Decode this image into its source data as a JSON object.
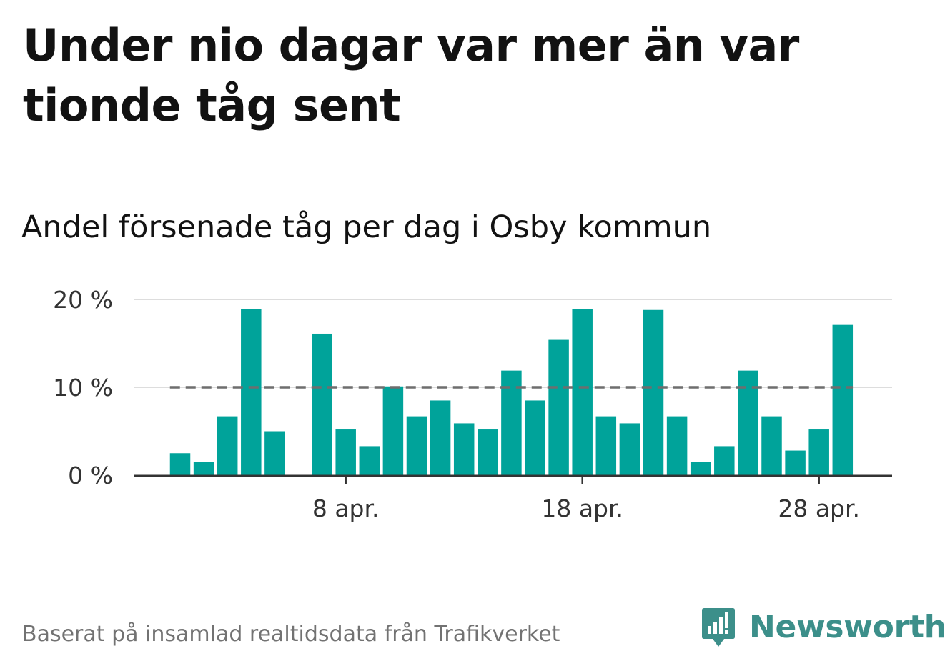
{
  "title": "Under nio dagar var mer än var tionde tåg sent",
  "subtitle": "Andel försenade tåg per dag i Osby kommun",
  "footer": {
    "note": "Baserat på insamlad realtidsdata från Trafikverket",
    "brand": "Newsworthy",
    "brand_icon": "newsworthy-logo-icon"
  },
  "colors": {
    "bar": "#00a39a",
    "reference_line": "#6e6e6e",
    "grid": "#dddddd",
    "axis": "#333333",
    "brand": "#3c8f8a"
  },
  "chart_data": {
    "type": "bar",
    "x": [
      "1 apr.",
      "2 apr.",
      "3 apr.",
      "4 apr.",
      "5 apr.",
      "6 apr.",
      "7 apr.",
      "8 apr.",
      "9 apr.",
      "10 apr.",
      "11 apr.",
      "12 apr.",
      "13 apr.",
      "14 apr.",
      "15 apr.",
      "16 apr.",
      "17 apr.",
      "18 apr.",
      "19 apr.",
      "20 apr.",
      "21 apr.",
      "22 apr.",
      "23 apr.",
      "24 apr.",
      "25 apr.",
      "26 apr.",
      "27 apr.",
      "28 apr.",
      "29 apr."
    ],
    "values": [
      2.5,
      1.5,
      6.7,
      18.9,
      5.0,
      0,
      16.1,
      5.2,
      3.3,
      10.1,
      6.7,
      8.5,
      5.9,
      5.2,
      11.9,
      8.5,
      15.4,
      18.9,
      6.7,
      5.9,
      18.8,
      6.7,
      1.5,
      3.3,
      11.9,
      6.7,
      2.8,
      5.2,
      17.1
    ],
    "unit": "%",
    "ylim": [
      0,
      20
    ],
    "yticks": [
      {
        "value": 0,
        "label": "0 %"
      },
      {
        "value": 10,
        "label": "10 %"
      },
      {
        "value": 20,
        "label": "20 %"
      }
    ],
    "xticks": [
      {
        "x": "8 apr.",
        "label": "8 apr."
      },
      {
        "x": "18 apr.",
        "label": "18 apr."
      },
      {
        "x": "28 apr.",
        "label": "28 apr."
      }
    ],
    "reference_line": {
      "value": 10,
      "style": "dashed"
    },
    "grid": true,
    "legend": "none"
  }
}
